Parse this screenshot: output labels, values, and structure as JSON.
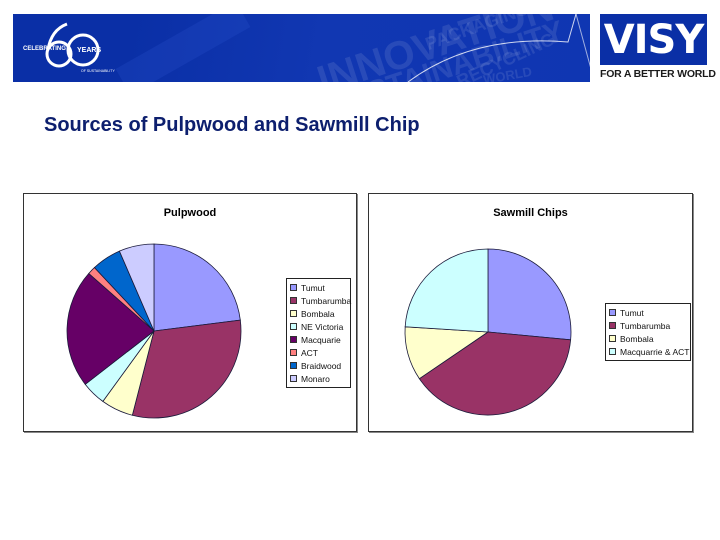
{
  "header": {
    "anniversary_logo": {
      "number": "60",
      "left_text": "CELEBRATING",
      "right_text": "YEARS",
      "sub_text": "OF SUSTAINABILITY"
    },
    "banner_words": [
      "INNOVATION",
      "PACKAGING",
      "SUSTAINABILITY",
      "RECYCLING",
      "WORLD"
    ],
    "brand": {
      "name": "VISY",
      "tagline": "FOR A BETTER WORLD"
    }
  },
  "page": {
    "title": "Sources of Pulpwood and Sawmill Chip"
  },
  "colors": {
    "brand_blue": "#0a2fa6",
    "title_navy": "#0d1f6e"
  },
  "chart_data": [
    {
      "type": "pie",
      "title": "Pulpwood",
      "categories": [
        "Tumut",
        "Tumbarumba",
        "Bombala",
        "NE  Victoria",
        "Macquarie",
        "ACT",
        "Braidwood",
        "Monaro"
      ],
      "values": [
        23,
        31,
        6,
        4.5,
        22,
        1.5,
        5.5,
        6.5
      ],
      "unit": "percent (estimated from slice angles)",
      "colors": [
        "#9999ff",
        "#993366",
        "#ffffcc",
        "#ccffff",
        "#660066",
        "#ff8080",
        "#0066cc",
        "#ccccff"
      ],
      "legend_position": "right",
      "start_angle": "12 o'clock, clockwise"
    },
    {
      "type": "pie",
      "title": "Sawmill Chips",
      "categories": [
        "Tumut",
        "Tumbarumba",
        "Bombala",
        "Macquarrie  &  ACT"
      ],
      "values": [
        26.5,
        39,
        10.5,
        24
      ],
      "unit": "percent (estimated from slice angles)",
      "colors": [
        "#9999ff",
        "#993366",
        "#ffffcc",
        "#ccffff"
      ],
      "legend_position": "right",
      "start_angle": "12 o'clock, clockwise"
    }
  ]
}
